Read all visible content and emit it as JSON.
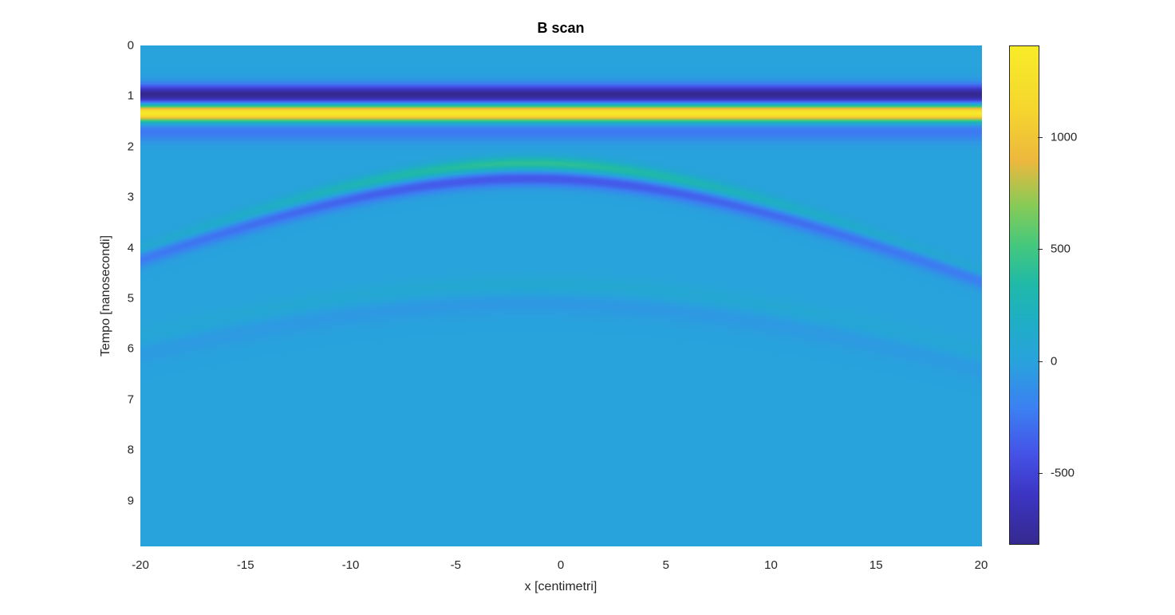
{
  "title": "B scan",
  "axes": {
    "xlabel": "x [centimetri]",
    "ylabel": "Tempo [nanosecondi]"
  },
  "colorbar": {
    "tick_labels": [
      "1000",
      "500",
      "0",
      "-500"
    ]
  },
  "chart_data": {
    "type": "heatmap",
    "title": "B scan",
    "xlabel": "x [centimetri]",
    "ylabel": "Tempo [nanosecondi]",
    "x_range_cm": [
      -20,
      20
    ],
    "t_range_ns": [
      0,
      9.89
    ],
    "x_ticks": [
      -20,
      -15,
      -10,
      -5,
      0,
      5,
      10,
      15,
      20
    ],
    "y_ticks": [
      0,
      1,
      2,
      3,
      4,
      5,
      6,
      7,
      8,
      9
    ],
    "grid": false,
    "legend": "none",
    "colorbar_position": "right",
    "colorbar_ticks": [
      1000,
      500,
      0,
      -500
    ],
    "clim": [
      -820,
      1410
    ],
    "colormap_name": "parula",
    "background_value_color": "#28A3DC",
    "colormap": [
      [
        0.0,
        "#35298F"
      ],
      [
        0.1,
        "#3C35C4"
      ],
      [
        0.185,
        "#4554E8"
      ],
      [
        0.27,
        "#3C7FF2"
      ],
      [
        0.368,
        "#28A3DC"
      ],
      [
        0.445,
        "#1FAEC6"
      ],
      [
        0.52,
        "#1FB9A9"
      ],
      [
        0.6,
        "#44C87D"
      ],
      [
        0.68,
        "#87CB57"
      ],
      [
        0.77,
        "#EDB83D"
      ],
      [
        0.875,
        "#F5D62E"
      ],
      [
        1.0,
        "#F8EC28"
      ]
    ],
    "model": {
      "description": "GPR B-scan: flat direct-wave wavelet bands plus diffraction hyperbola from a buried point target",
      "direct_wave_bands": [
        {
          "t_ns": 0.97,
          "amplitude": -820,
          "sigma_ns": 0.14
        },
        {
          "t_ns": 1.33,
          "amplitude": 1410,
          "sigma_ns": 0.115
        },
        {
          "t_ns": 1.68,
          "amplitude": -250,
          "sigma_ns": 0.15
        }
      ],
      "hyperbolas": [
        {
          "x0_cm": -1.5,
          "t0_ns": 2.33,
          "velocity_cm_per_ns": 5.6,
          "amplitude": 430,
          "sigma_ns": 0.1,
          "spread_decay": 2.2
        },
        {
          "x0_cm": -1.5,
          "t0_ns": 2.62,
          "velocity_cm_per_ns": 5.6,
          "amplitude": -400,
          "sigma_ns": 0.115,
          "spread_decay": 0.9
        },
        {
          "x0_cm": -1.5,
          "t0_ns": 4.75,
          "velocity_cm_per_ns": 5.6,
          "amplitude": 95,
          "sigma_ns": 0.16,
          "spread_decay": 1.5
        },
        {
          "x0_cm": -1.5,
          "t0_ns": 5.05,
          "velocity_cm_per_ns": 5.6,
          "amplitude": -75,
          "sigma_ns": 0.18,
          "spread_decay": 1.0
        }
      ]
    }
  }
}
